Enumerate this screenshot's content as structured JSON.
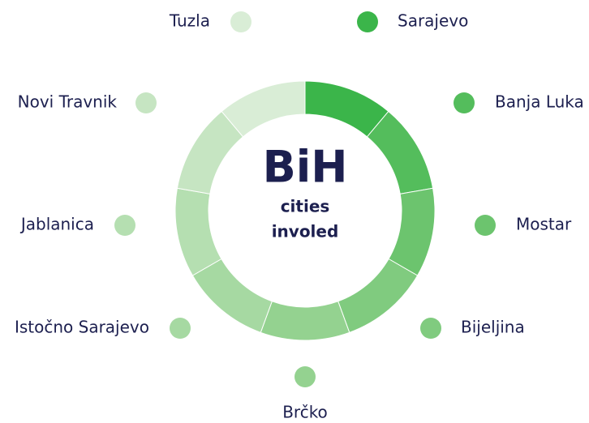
{
  "center": {
    "title": "BiH",
    "subtitle_lines": [
      "cities",
      "involed"
    ]
  },
  "cities": [
    {
      "label": "Sarajevo",
      "color": "#3bb54a"
    },
    {
      "label": "Banja Luka",
      "color": "#54bd5c"
    },
    {
      "label": "Mostar",
      "color": "#6cc46e"
    },
    {
      "label": "Bijeljina",
      "color": "#80cb7f"
    },
    {
      "label": "Brčko",
      "color": "#94d290"
    },
    {
      "label": "Istočno Sarajevo",
      "color": "#a6d9a2"
    },
    {
      "label": "Jablanica",
      "color": "#b5dfb1"
    },
    {
      "label": "Novi Travnik",
      "color": "#c6e5c2"
    },
    {
      "label": "Tuzla",
      "color": "#d9edd6"
    }
  ]
}
